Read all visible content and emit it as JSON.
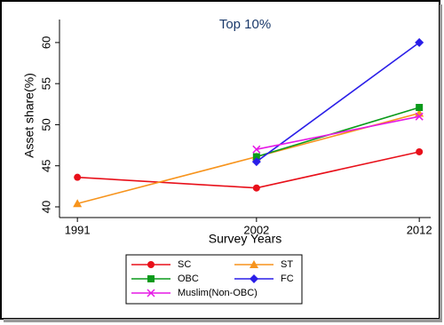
{
  "chart_data": {
    "type": "line",
    "title": "Top 10%",
    "x_label": "Survey Years",
    "y_label": "Asset share(%)",
    "x": [
      1991,
      2002,
      2012
    ],
    "xlim": [
      1989.9,
      2012.7
    ],
    "xticks": [
      1991,
      2002,
      2012
    ],
    "ylim": [
      38.7,
      62.8
    ],
    "yticks": [
      40,
      45,
      50,
      55,
      60
    ],
    "series": [
      {
        "name": "SC",
        "color": "#e8101a",
        "marker": "circle",
        "values": [
          43.6,
          42.3,
          46.7
        ]
      },
      {
        "name": "ST",
        "color": "#f7941d",
        "marker": "triangle",
        "values": [
          40.4,
          46.1,
          51.4
        ]
      },
      {
        "name": "OBC",
        "color": "#0a9a1a",
        "marker": "square",
        "values": [
          null,
          46.1,
          52.1
        ]
      },
      {
        "name": "FC",
        "color": "#2a1ee8",
        "marker": "diamond",
        "values": [
          null,
          45.5,
          60.0
        ]
      },
      {
        "name": "Muslim(Non-OBC)",
        "color": "#e619e6",
        "marker": "x",
        "values": [
          null,
          47.0,
          51.0
        ]
      }
    ]
  }
}
